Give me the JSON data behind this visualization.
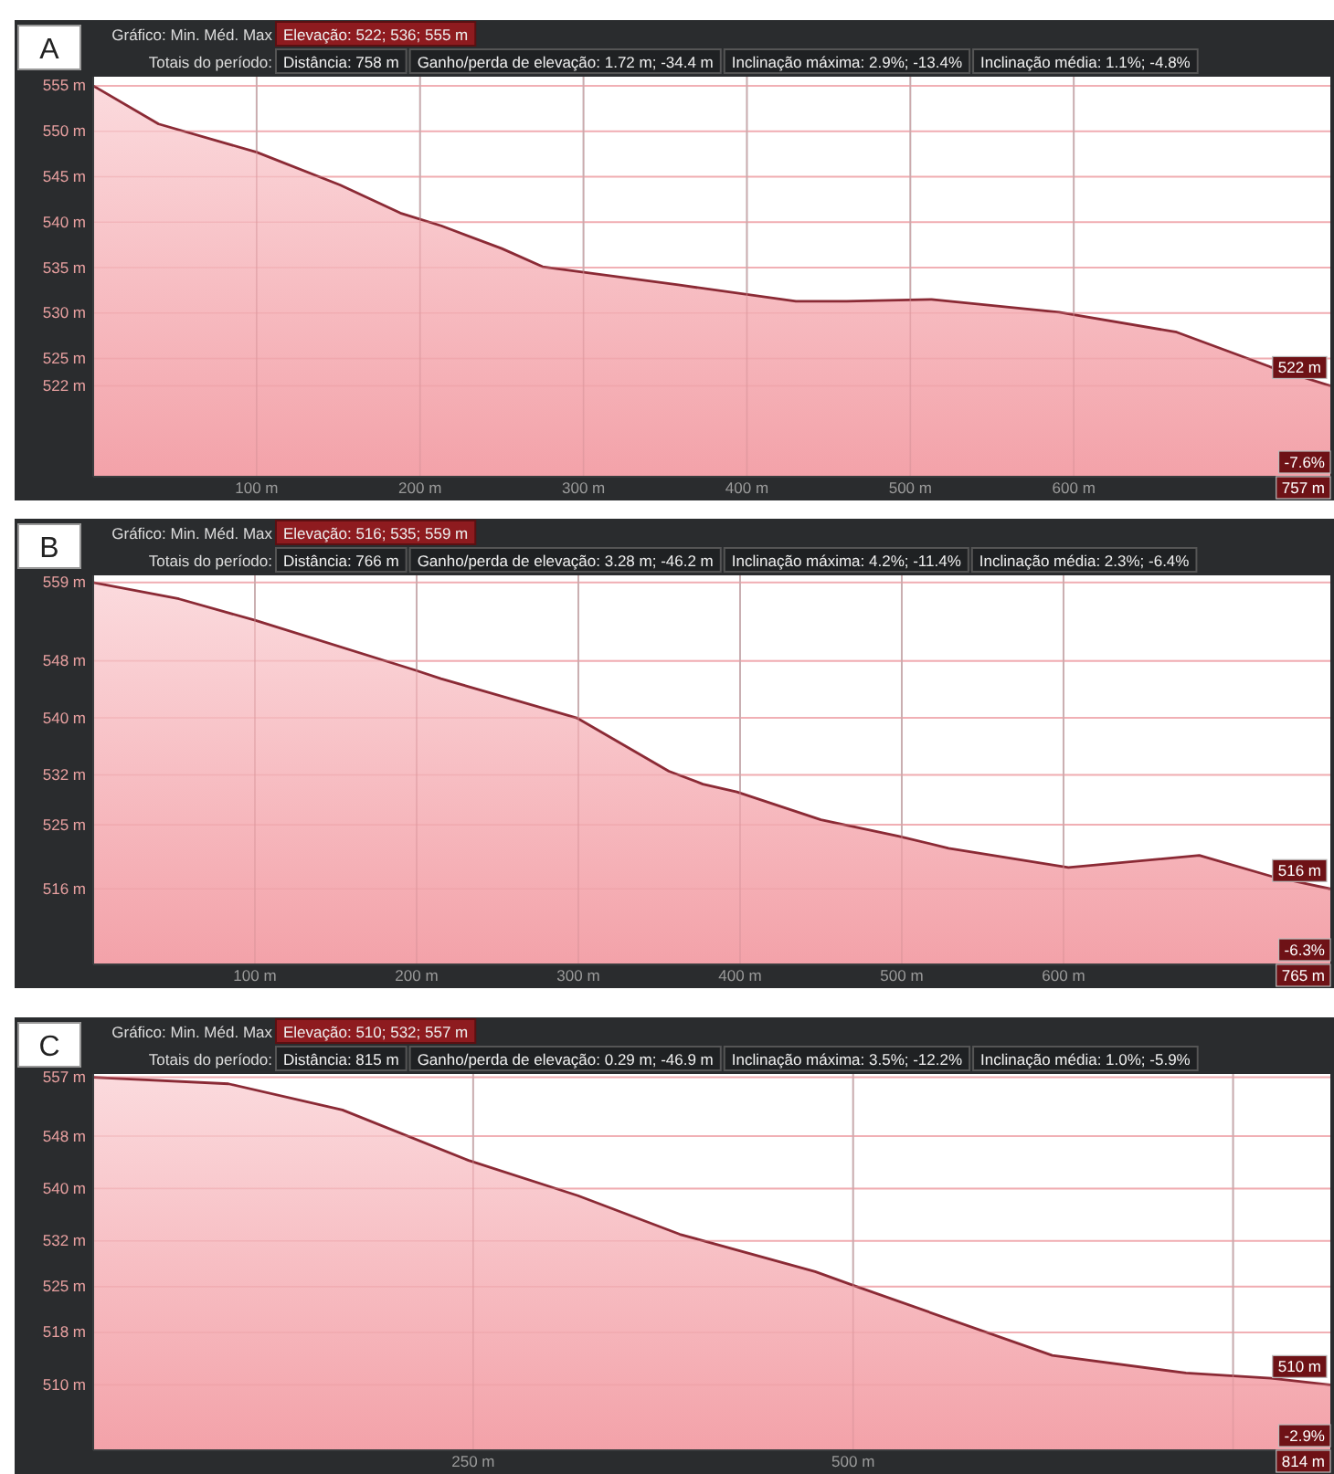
{
  "chart_data": [
    {
      "type": "area",
      "title": "A",
      "xlim": [
        0,
        757
      ],
      "ylim": [
        512,
        556
      ],
      "grid": true,
      "xticks": [
        {
          "value": 100,
          "label": "100 m"
        },
        {
          "value": 200,
          "label": "200 m"
        },
        {
          "value": 300,
          "label": "300 m"
        },
        {
          "value": 400,
          "label": "400 m"
        },
        {
          "value": 500,
          "label": "500 m"
        },
        {
          "value": 600,
          "label": "600 m"
        }
      ],
      "yticks": [
        {
          "value": 555,
          "label": "555 m"
        },
        {
          "value": 550,
          "label": "550 m"
        },
        {
          "value": 545,
          "label": "545 m"
        },
        {
          "value": 540,
          "label": "540 m"
        },
        {
          "value": 535,
          "label": "535 m"
        },
        {
          "value": 530,
          "label": "530 m"
        },
        {
          "value": 525,
          "label": "525 m"
        },
        {
          "value": 522,
          "label": "522 m"
        }
      ],
      "x": [
        0,
        40,
        100,
        151,
        188,
        213,
        250,
        275,
        358,
        430,
        461,
        513,
        591,
        663,
        720,
        757
      ],
      "series": [
        {
          "color": "#8b2a35",
          "values": [
            555,
            550.8,
            547.7,
            544.1,
            541,
            539.6,
            537.1,
            535.1,
            533.1,
            531.3,
            531.3,
            531.5,
            530.1,
            527.9,
            524.1,
            522
          ]
        }
      ],
      "annotations": [
        "Gráfico: Min. Méd. Max",
        "Elevação: 522; 536; 555 m",
        "Totais do período:",
        "Distância: 758 m",
        "Ganho/perda de elevação: 1.72 m; -34.4 m",
        "Inclinação máxima: 2.9%; -13.4%",
        "Inclinação média: 1.1%; -4.8%",
        {
          "text": "522 m",
          "x": 757,
          "y": 522
        },
        "-7.6%",
        "757 m"
      ]
    },
    {
      "type": "area",
      "title": "B",
      "xlim": [
        0,
        765
      ],
      "ylim": [
        505.4,
        560
      ],
      "grid": true,
      "xticks": [
        {
          "value": 100,
          "label": "100 m"
        },
        {
          "value": 200,
          "label": "200 m"
        },
        {
          "value": 300,
          "label": "300 m"
        },
        {
          "value": 400,
          "label": "400 m"
        },
        {
          "value": 500,
          "label": "500 m"
        },
        {
          "value": 600,
          "label": "600 m"
        }
      ],
      "yticks": [
        {
          "value": 559,
          "label": "559 m"
        },
        {
          "value": 548,
          "label": "548 m"
        },
        {
          "value": 540,
          "label": "540 m"
        },
        {
          "value": 532,
          "label": "532 m"
        },
        {
          "value": 525,
          "label": "525 m"
        },
        {
          "value": 516,
          "label": "516 m"
        }
      ],
      "x": [
        0,
        53,
        100,
        199,
        215,
        299,
        356,
        377,
        398,
        450,
        498,
        529,
        603,
        684,
        728,
        765
      ],
      "series": [
        {
          "color": "#8b2a35",
          "values": [
            559,
            556.7,
            553.7,
            546.7,
            545.5,
            540,
            532.5,
            530.7,
            529.6,
            525.7,
            523.4,
            521.7,
            519,
            520.7,
            517.8,
            516
          ]
        }
      ],
      "annotations": [
        "Gráfico: Min. Méd. Max",
        "Elevação: 516; 535; 559 m",
        "Totais do período:",
        "Distância: 766 m",
        "Ganho/perda de elevação: 3.28 m; -46.2 m",
        "Inclinação máxima: 4.2%; -11.4%",
        "Inclinação média: 2.3%; -6.4%",
        {
          "text": "516 m",
          "x": 765,
          "y": 516
        },
        "-6.3%",
        "765 m"
      ]
    },
    {
      "type": "area",
      "title": "C",
      "xlim": [
        0,
        814
      ],
      "ylim": [
        500,
        557.5
      ],
      "grid": true,
      "xticks": [
        {
          "value": 250,
          "label": "250 m"
        },
        {
          "value": 500,
          "label": "500 m"
        },
        {
          "value": 750,
          "label": null
        }
      ],
      "yticks": [
        {
          "value": 557,
          "label": "557 m"
        },
        {
          "value": 548,
          "label": "548 m"
        },
        {
          "value": 540,
          "label": "540 m"
        },
        {
          "value": 532,
          "label": "532 m"
        },
        {
          "value": 525,
          "label": "525 m"
        },
        {
          "value": 518,
          "label": "518 m"
        },
        {
          "value": 510,
          "label": "510 m"
        }
      ],
      "x": [
        0,
        89,
        164,
        247,
        319,
        386,
        475,
        500,
        631,
        719,
        775,
        814
      ],
      "series": [
        {
          "color": "#8b2a35",
          "values": [
            557,
            556,
            552,
            544.3,
            538.9,
            533,
            527.3,
            525.2,
            514.5,
            511.8,
            511,
            510
          ]
        }
      ],
      "annotations": [
        "Gráfico: Min. Méd. Max",
        "Elevação: 510; 532; 557 m",
        "Totais do período:",
        "Distância: 815 m",
        "Ganho/perda de elevação: 0.29 m; -46.9 m",
        "Inclinação máxima: 3.5%; -12.2%",
        "Inclinação média: 1.0%; -5.9%",
        {
          "text": "510 m",
          "x": 814,
          "y": 510
        },
        "-2.9%",
        "814 m"
      ]
    }
  ]
}
